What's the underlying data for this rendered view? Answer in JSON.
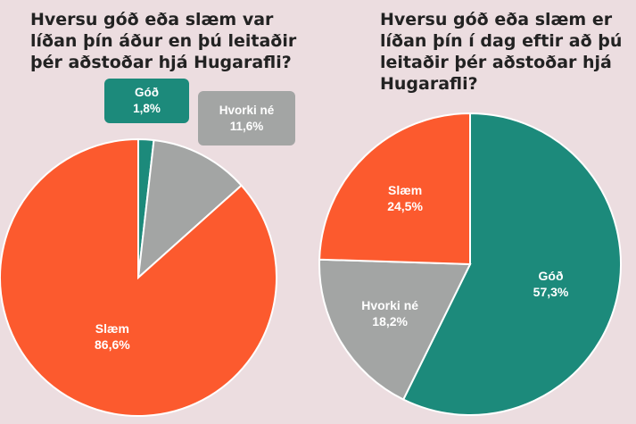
{
  "charts": [
    {
      "title_parts": {
        "pre": "Hversu góð eða slæm var líðan þín ",
        "bold": "áður",
        "post": " en þú leitaðir þér aðstoðar hjá Hugarafli?"
      }
    },
    {
      "title_parts": {
        "pre": "Hversu góð eða slæm er líðan þín í dag ",
        "bold": "eftir",
        "post": " að þú leitaðir þér aðstoðar hjá Hugarafli?"
      }
    }
  ],
  "chart_data": [
    {
      "type": "pie",
      "title": "Hversu góð eða slæm var líðan þín áður en þú leitaðir þér aðstoðar hjá Hugarafli?",
      "slices": [
        {
          "label": "Góð",
          "value": 1.8,
          "value_label": "1,8%",
          "color": "#1c8a7b"
        },
        {
          "label": "Hvorki né",
          "value": 11.6,
          "value_label": "11,6%",
          "color": "#a3a5a4"
        },
        {
          "label": "Slæm",
          "value": 86.6,
          "value_label": "86,6%",
          "color": "#fc5a2e"
        }
      ]
    },
    {
      "type": "pie",
      "title": "Hversu góð eða slæm er líðan þín í dag eftir að þú leitaðir þér aðstoðar hjá Hugarafli?",
      "slices": [
        {
          "label": "Góð",
          "value": 57.3,
          "value_label": "57,3%",
          "color": "#1c8a7b"
        },
        {
          "label": "Hvorki né",
          "value": 18.2,
          "value_label": "18,2%",
          "color": "#a3a5a4"
        },
        {
          "label": "Slæm",
          "value": 24.5,
          "value_label": "24,5%",
          "color": "#fc5a2e"
        }
      ]
    }
  ]
}
